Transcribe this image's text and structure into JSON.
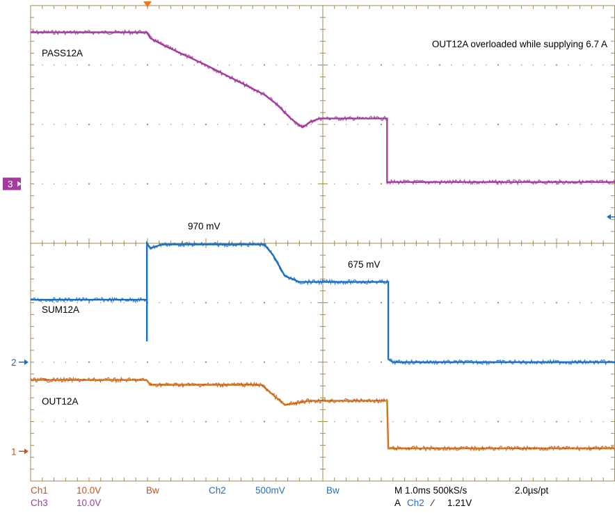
{
  "chart_data": {
    "type": "line",
    "title": "",
    "timebase": {
      "divisions": 10,
      "per_div_ms": 1.0,
      "xlim_div": [
        0,
        10
      ]
    },
    "vertical": {
      "divisions": 8,
      "ylim_div": [
        -4,
        4
      ]
    },
    "annotations": {
      "header": "OUT12A overloaded while supplying 6.7 A",
      "sum_high": "970 mV",
      "sum_low": "675 mV"
    },
    "series": [
      {
        "name": "PASS12A",
        "channel": "Ch3",
        "color": "#a33c9e",
        "marker_label": "3",
        "ref_level_div": 1,
        "x": [
          0.0,
          1.99,
          2.05,
          2.3,
          3.0,
          4.0,
          4.2,
          4.45,
          4.65,
          4.8,
          4.95,
          6.1,
          6.1,
          10.0
        ],
        "y": [
          3.55,
          3.55,
          3.45,
          3.32,
          3.0,
          2.5,
          2.35,
          2.1,
          1.95,
          2.05,
          2.1,
          2.1,
          1.03,
          1.03
        ]
      },
      {
        "name": "SUM12A",
        "channel": "Ch2",
        "color": "#1d6fc4",
        "marker_label": "2",
        "ref_level_div": -2,
        "x": [
          0.0,
          1.99,
          1.99,
          1.99,
          1.99,
          2.05,
          2.25,
          4.0,
          4.15,
          4.35,
          4.6,
          6.12,
          6.12,
          6.2,
          10.0
        ],
        "y": [
          -0.95,
          -0.95,
          -1.65,
          -0.3,
          0.0,
          -0.08,
          -0.02,
          -0.02,
          -0.2,
          -0.55,
          -0.65,
          -0.65,
          -1.95,
          -2.0,
          -2.0
        ]
      },
      {
        "name": "OUT12A",
        "channel": "Ch1",
        "color": "#c8521e",
        "marker_label": "1",
        "ref_level_div": -3.5,
        "x": [
          0.0,
          1.98,
          2.05,
          3.95,
          4.15,
          4.35,
          4.6,
          4.75,
          6.1,
          6.12,
          10.0
        ],
        "y": [
          -2.3,
          -2.3,
          -2.38,
          -2.38,
          -2.55,
          -2.72,
          -2.68,
          -2.65,
          -2.65,
          -3.45,
          -3.45
        ]
      }
    ],
    "offscreen_ref_marker_color": "#1d6fc4"
  },
  "status": {
    "ch1": {
      "label": "Ch1",
      "scale": "10.0V",
      "color": "#c8521e"
    },
    "ch3": {
      "label": "Ch3",
      "scale": "10.0V",
      "color": "#a33c9e"
    },
    "bw1": "Bw",
    "ch2": {
      "label": "Ch2",
      "scale": "500mV",
      "color": "#1d6fc4"
    },
    "bw2": "Bw",
    "horiz": "M 1.0ms 500kS/s",
    "rate": "2.0µs/pt",
    "trig_prefix": "A",
    "trig_src": "Ch2",
    "trig_slope": "⁄",
    "trig_level": "1.21V"
  },
  "colors": {
    "grid": "#a08a4c",
    "trigger_marker": "#f07a1a",
    "text": "#000000"
  }
}
